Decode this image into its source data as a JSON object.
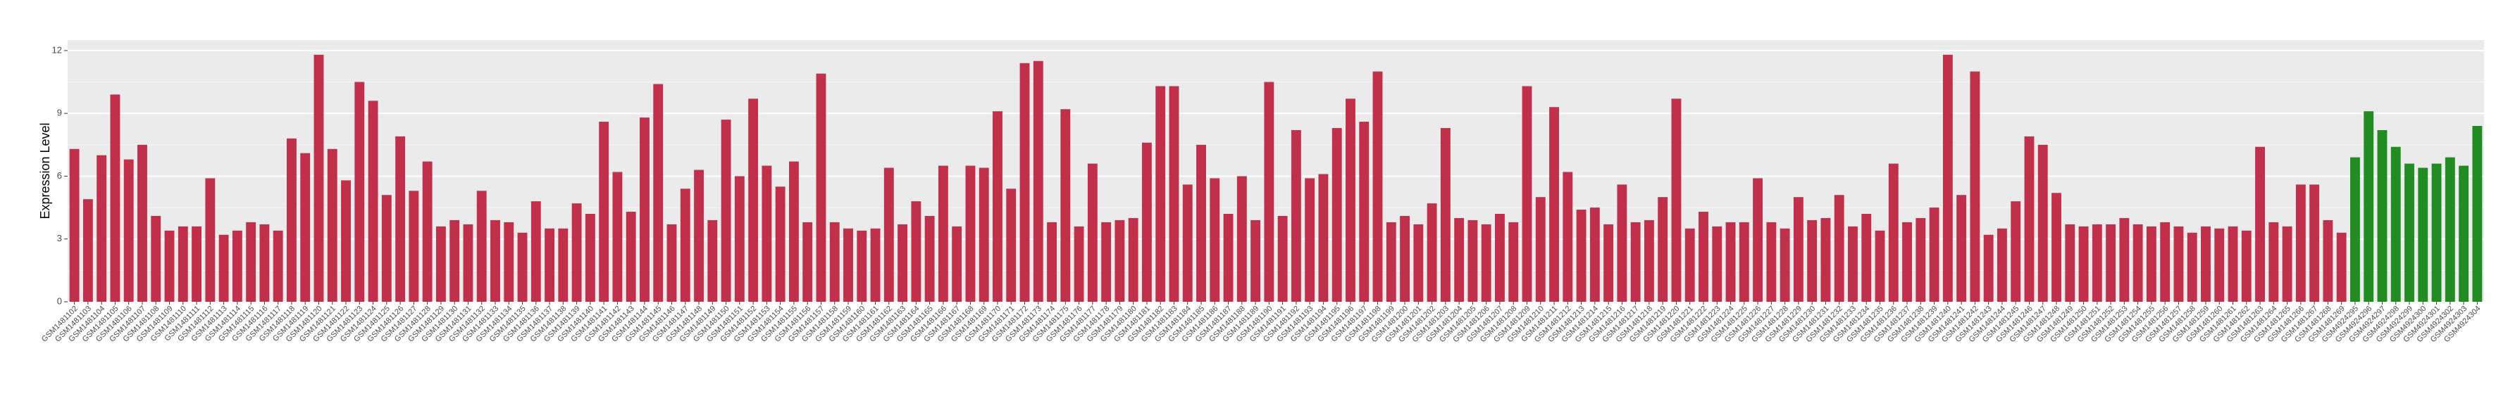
{
  "chart_data": {
    "type": "bar",
    "y_label": "Expression Level",
    "categories": [
      "GSM1481102",
      "GSM1481103",
      "GSM1481104",
      "GSM1481105",
      "GSM1481106",
      "GSM1481107",
      "GSM1481108",
      "GSM1481109",
      "GSM1481110",
      "GSM1481111",
      "GSM1481112",
      "GSM1481113",
      "GSM1481114",
      "GSM1481115",
      "GSM1481116",
      "GSM1481117",
      "GSM1481118",
      "GSM1481119",
      "GSM1481120",
      "GSM1481121",
      "GSM1481122",
      "GSM1481123",
      "GSM1481124",
      "GSM1481125",
      "GSM1481126",
      "GSM1481127",
      "GSM1481128",
      "GSM1481129",
      "GSM1481130",
      "GSM1481131",
      "GSM1481132",
      "GSM1481133",
      "GSM1481134",
      "GSM1481135",
      "GSM1481136",
      "GSM1481137",
      "GSM1481138",
      "GSM1481139",
      "GSM1481140",
      "GSM1481141",
      "GSM1481142",
      "GSM1481143",
      "GSM1481144",
      "GSM1481145",
      "GSM1481146",
      "GSM1481147",
      "GSM1481148",
      "GSM1481149",
      "GSM1481150",
      "GSM1481151",
      "GSM1481152",
      "GSM1481153",
      "GSM1481154",
      "GSM1481155",
      "GSM1481156",
      "GSM1481157",
      "GSM1481158",
      "GSM1481159",
      "GSM1481160",
      "GSM1481161",
      "GSM1481162",
      "GSM1481163",
      "GSM1481164",
      "GSM1481165",
      "GSM1481166",
      "GSM1481167",
      "GSM1481168",
      "GSM1481169",
      "GSM1481170",
      "GSM1481171",
      "GSM1481172",
      "GSM1481173",
      "GSM1481174",
      "GSM1481175",
      "GSM1481176",
      "GSM1481177",
      "GSM1481178",
      "GSM1481179",
      "GSM1481180",
      "GSM1481181",
      "GSM1481182",
      "GSM1481183",
      "GSM1481184",
      "GSM1481185",
      "GSM1481186",
      "GSM1481187",
      "GSM1481188",
      "GSM1481189",
      "GSM1481190",
      "GSM1481191",
      "GSM1481192",
      "GSM1481193",
      "GSM1481194",
      "GSM1481195",
      "GSM1481196",
      "GSM1481197",
      "GSM1481198",
      "GSM1481199",
      "GSM1481200",
      "GSM1481201",
      "GSM1481202",
      "GSM1481203",
      "GSM1481204",
      "GSM1481205",
      "GSM1481206",
      "GSM1481207",
      "GSM1481208",
      "GSM1481209",
      "GSM1481210",
      "GSM1481211",
      "GSM1481212",
      "GSM1481213",
      "GSM1481214",
      "GSM1481215",
      "GSM1481216",
      "GSM1481217",
      "GSM1481218",
      "GSM1481219",
      "GSM1481220",
      "GSM1481221",
      "GSM1481222",
      "GSM1481223",
      "GSM1481224",
      "GSM1481225",
      "GSM1481226",
      "GSM1481227",
      "GSM1481228",
      "GSM1481229",
      "GSM1481230",
      "GSM1481231",
      "GSM1481232",
      "GSM1481233",
      "GSM1481234",
      "GSM1481235",
      "GSM1481236",
      "GSM1481237",
      "GSM1481238",
      "GSM1481239",
      "GSM1481240",
      "GSM1481241",
      "GSM1481242",
      "GSM1481243",
      "GSM1481244",
      "GSM1481245",
      "GSM1481246",
      "GSM1481247",
      "GSM1481248",
      "GSM1481249",
      "GSM1481250",
      "GSM1481251",
      "GSM1481252",
      "GSM1481253",
      "GSM1481254",
      "GSM1481255",
      "GSM1481256",
      "GSM1481257",
      "GSM1481258",
      "GSM1481259",
      "GSM1481260",
      "GSM1481261",
      "GSM1481262",
      "GSM1481263",
      "GSM1481264",
      "GSM1481265",
      "GSM1481266",
      "GSM1481267",
      "GSM1481268",
      "GSM1481269",
      "GSM4924295",
      "GSM4924296",
      "GSM4924297",
      "GSM4924298",
      "GSM4924299",
      "GSM4924300",
      "GSM4924301",
      "GSM4924302",
      "GSM4924303",
      "GSM4924304"
    ],
    "values": [
      7.3,
      4.9,
      7.0,
      9.9,
      6.8,
      7.5,
      4.1,
      3.4,
      3.6,
      3.6,
      5.9,
      3.2,
      3.4,
      3.8,
      3.7,
      3.4,
      7.8,
      7.1,
      11.8,
      7.3,
      5.8,
      10.5,
      9.6,
      5.1,
      7.9,
      5.3,
      6.7,
      3.6,
      3.9,
      3.7,
      5.3,
      3.9,
      3.8,
      3.3,
      4.8,
      3.5,
      3.5,
      4.7,
      4.2,
      8.6,
      6.2,
      4.3,
      8.8,
      10.4,
      3.7,
      5.4,
      6.3,
      3.9,
      8.7,
      6.0,
      9.7,
      6.5,
      5.5,
      6.7,
      3.8,
      10.9,
      3.8,
      3.5,
      3.4,
      3.5,
      6.4,
      3.7,
      4.8,
      4.1,
      6.5,
      3.6,
      6.5,
      6.4,
      9.1,
      5.4,
      11.4,
      11.5,
      3.8,
      9.2,
      3.6,
      6.6,
      3.8,
      3.9,
      4.0,
      7.6,
      10.3,
      10.3,
      5.6,
      7.5,
      5.9,
      4.2,
      6.0,
      3.9,
      10.5,
      4.1,
      8.2,
      5.9,
      6.1,
      8.3,
      9.7,
      8.6,
      11.0,
      3.8,
      4.1,
      3.7,
      4.7,
      8.3,
      4.0,
      3.9,
      3.7,
      4.2,
      3.8,
      10.3,
      5.0,
      9.3,
      6.2,
      4.4,
      4.5,
      3.7,
      5.6,
      3.8,
      3.9,
      5.0,
      9.7,
      3.5,
      4.3,
      3.6,
      3.8,
      3.8,
      5.9,
      3.8,
      3.5,
      5.0,
      3.9,
      4.0,
      5.1,
      3.6,
      4.2,
      3.4,
      6.6,
      3.8,
      4.0,
      4.5,
      11.8,
      5.1,
      11.0,
      3.2,
      3.5,
      4.8,
      7.9,
      7.5,
      5.2,
      3.7,
      3.6,
      3.7,
      3.7,
      4.0,
      3.7,
      3.6,
      3.8,
      3.6,
      3.3,
      3.6,
      3.5,
      3.6,
      3.4,
      7.4,
      3.8,
      3.6,
      5.6,
      5.6,
      3.9,
      3.3,
      6.9,
      9.1,
      8.2,
      7.4,
      6.6,
      6.4,
      6.6,
      6.9,
      6.5,
      8.4
    ],
    "colors": [
      "#c1304a",
      "#c1304a",
      "#c1304a",
      "#c1304a",
      "#c1304a",
      "#c1304a",
      "#c1304a",
      "#c1304a",
      "#c1304a",
      "#c1304a",
      "#c1304a",
      "#c1304a",
      "#c1304a",
      "#c1304a",
      "#c1304a",
      "#c1304a",
      "#c1304a",
      "#c1304a",
      "#c1304a",
      "#c1304a",
      "#c1304a",
      "#c1304a",
      "#c1304a",
      "#c1304a",
      "#c1304a",
      "#c1304a",
      "#c1304a",
      "#c1304a",
      "#c1304a",
      "#c1304a",
      "#c1304a",
      "#c1304a",
      "#c1304a",
      "#c1304a",
      "#c1304a",
      "#c1304a",
      "#c1304a",
      "#c1304a",
      "#c1304a",
      "#c1304a",
      "#c1304a",
      "#c1304a",
      "#c1304a",
      "#c1304a",
      "#c1304a",
      "#c1304a",
      "#c1304a",
      "#c1304a",
      "#c1304a",
      "#c1304a",
      "#c1304a",
      "#c1304a",
      "#c1304a",
      "#c1304a",
      "#c1304a",
      "#c1304a",
      "#c1304a",
      "#c1304a",
      "#c1304a",
      "#c1304a",
      "#c1304a",
      "#c1304a",
      "#c1304a",
      "#c1304a",
      "#c1304a",
      "#c1304a",
      "#c1304a",
      "#c1304a",
      "#c1304a",
      "#c1304a",
      "#c1304a",
      "#c1304a",
      "#c1304a",
      "#c1304a",
      "#c1304a",
      "#c1304a",
      "#c1304a",
      "#c1304a",
      "#c1304a",
      "#c1304a",
      "#c1304a",
      "#c1304a",
      "#c1304a",
      "#c1304a",
      "#c1304a",
      "#c1304a",
      "#c1304a",
      "#c1304a",
      "#c1304a",
      "#c1304a",
      "#c1304a",
      "#c1304a",
      "#c1304a",
      "#c1304a",
      "#c1304a",
      "#c1304a",
      "#c1304a",
      "#c1304a",
      "#c1304a",
      "#c1304a",
      "#c1304a",
      "#c1304a",
      "#c1304a",
      "#c1304a",
      "#c1304a",
      "#c1304a",
      "#c1304a",
      "#c1304a",
      "#c1304a",
      "#c1304a",
      "#c1304a",
      "#c1304a",
      "#c1304a",
      "#c1304a",
      "#c1304a",
      "#c1304a",
      "#c1304a",
      "#c1304a",
      "#c1304a",
      "#c1304a",
      "#c1304a",
      "#c1304a",
      "#c1304a",
      "#c1304a",
      "#c1304a",
      "#c1304a",
      "#c1304a",
      "#c1304a",
      "#c1304a",
      "#c1304a",
      "#c1304a",
      "#c1304a",
      "#c1304a",
      "#c1304a",
      "#c1304a",
      "#c1304a",
      "#c1304a",
      "#c1304a",
      "#c1304a",
      "#c1304a",
      "#c1304a",
      "#c1304a",
      "#c1304a",
      "#c1304a",
      "#c1304a",
      "#c1304a",
      "#c1304a",
      "#c1304a",
      "#c1304a",
      "#c1304a",
      "#c1304a",
      "#c1304a",
      "#c1304a",
      "#c1304a",
      "#c1304a",
      "#c1304a",
      "#c1304a",
      "#c1304a",
      "#c1304a",
      "#c1304a",
      "#c1304a",
      "#c1304a",
      "#c1304a",
      "#c1304a",
      "#c1304a",
      "#c1304a",
      "#c1304a",
      "#c1304a",
      "#228b22",
      "#228b22",
      "#228b22",
      "#228b22",
      "#228b22",
      "#228b22",
      "#228b22",
      "#228b22",
      "#228b22",
      "#228b22"
    ],
    "ylim": [
      0,
      12.5
    ],
    "yticks": [
      0,
      3,
      6,
      9,
      12
    ],
    "grid": true
  }
}
